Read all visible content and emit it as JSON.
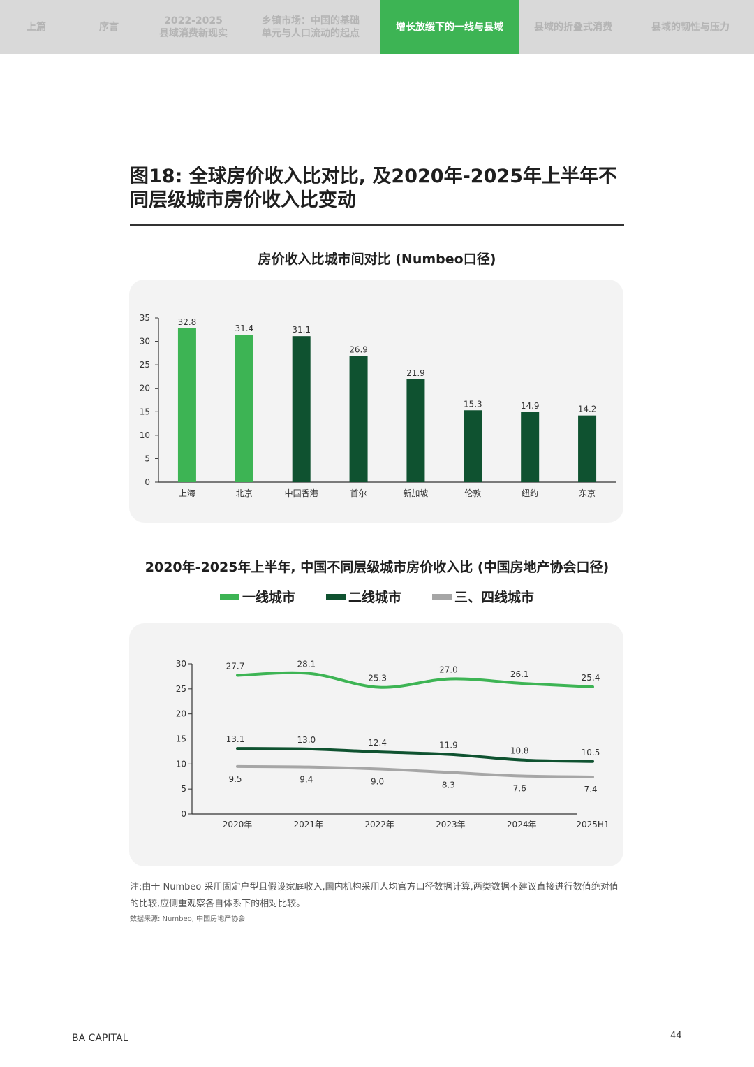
{
  "nav": {
    "tabs": [
      {
        "label": "上篇",
        "active": false
      },
      {
        "label": "序言",
        "active": false
      },
      {
        "label": "2022-2025\n县域消费新现实",
        "active": false
      },
      {
        "label": "乡镇市场：中国的基础\n单元与人口流动的起点",
        "active": false
      },
      {
        "label": "增长放缓下的一线与县域",
        "active": true
      },
      {
        "label": "县域的折叠式消费",
        "active": false
      },
      {
        "label": "县域的韧性与压力",
        "active": false
      }
    ]
  },
  "figure": {
    "title": "图18: 全球房价收入比对比, 及2020年-2025年上半年不同层级城市房价收入比变动"
  },
  "colors": {
    "light_green": "#3db454",
    "dark_green": "#0f5230",
    "gray": "#a6a6a6",
    "active_tab": "#3db454"
  },
  "chart_data": [
    {
      "type": "bar",
      "title": "房价收入比城市间对比 (Numbeo口径)",
      "categories": [
        "上海",
        "北京",
        "中国香港",
        "首尔",
        "新加坡",
        "伦敦",
        "纽约",
        "东京"
      ],
      "values": [
        32.8,
        31.4,
        31.1,
        26.9,
        21.9,
        15.3,
        14.9,
        14.2
      ],
      "bar_colors": [
        "light_green",
        "light_green",
        "dark_green",
        "dark_green",
        "dark_green",
        "dark_green",
        "dark_green",
        "dark_green"
      ],
      "ylim": [
        0,
        35
      ],
      "yticks": [
        0,
        5,
        10,
        15,
        20,
        25,
        30,
        35
      ],
      "grid": false
    },
    {
      "type": "line",
      "title": "2020年-2025年上半年, 中国不同层级城市房价收入比 (中国房地产协会口径)",
      "categories": [
        "2020年",
        "2021年",
        "2022年",
        "2023年",
        "2024年",
        "2025H1"
      ],
      "series": [
        {
          "name": "一线城市",
          "color": "light_green",
          "values": [
            27.7,
            28.1,
            25.3,
            27.0,
            26.1,
            25.4
          ]
        },
        {
          "name": "二线城市",
          "color": "dark_green",
          "values": [
            13.1,
            13.0,
            12.4,
            11.9,
            10.8,
            10.5
          ]
        },
        {
          "name": "三、四线城市",
          "color": "gray",
          "values": [
            9.5,
            9.4,
            9.0,
            8.3,
            7.6,
            7.4
          ]
        }
      ],
      "ylim": [
        0,
        30
      ],
      "yticks": [
        0,
        5,
        10,
        15,
        20,
        25,
        30
      ],
      "legend": "top-center",
      "grid": false
    }
  ],
  "note": "注:由于 Numbeo 采用固定户型且假设家庭收入,国内机构采用人均官方口径数据计算,两类数据不建议直接进行数值绝对值的比较,应侧重观察各自体系下的相对比较。",
  "source": "数据来源: Numbeo, 中国房地产协会",
  "footer": {
    "brand": "BA CAPITAL",
    "page": "44"
  }
}
